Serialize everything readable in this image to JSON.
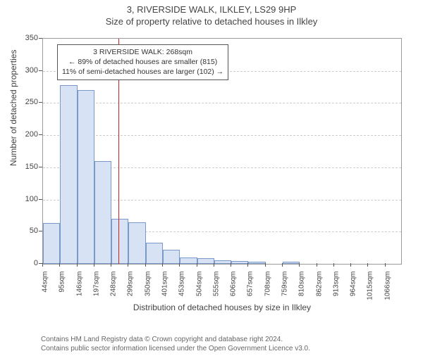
{
  "title": "3, RIVERSIDE WALK, ILKLEY, LS29 9HP",
  "subtitle": "Size of property relative to detached houses in Ilkley",
  "yaxis_title": "Number of detached properties",
  "xaxis_title": "Distribution of detached houses by size in Ilkley",
  "chart": {
    "type": "histogram",
    "ylim": [
      0,
      350
    ],
    "ytick_step": 50,
    "background_color": "#ffffff",
    "grid_color": "#cccccc",
    "axis_color": "#999999",
    "bar_fill": "#d7e3f4",
    "bar_border": "#7a99c8",
    "marker_color": "#d02020",
    "marker_x_value": 268,
    "x_start": 44,
    "x_step": 51,
    "x_unit": "sqm",
    "categories": [
      "44sqm",
      "95sqm",
      "146sqm",
      "197sqm",
      "248sqm",
      "299sqm",
      "350sqm",
      "401sqm",
      "453sqm",
      "504sqm",
      "555sqm",
      "606sqm",
      "657sqm",
      "708sqm",
      "759sqm",
      "810sqm",
      "862sqm",
      "913sqm",
      "964sqm",
      "1015sqm",
      "1066sqm"
    ],
    "values": [
      63,
      278,
      270,
      160,
      70,
      65,
      33,
      22,
      10,
      9,
      6,
      4,
      3,
      0,
      3,
      0,
      0,
      0,
      0,
      0,
      0
    ],
    "bar_width_ratio": 1.0
  },
  "annotation": {
    "line1": "3 RIVERSIDE WALK: 268sqm",
    "line2": "← 89% of detached houses are smaller (815)",
    "line3": "11% of semi-detached houses are larger (102) →",
    "border_color": "#555555"
  },
  "footer": {
    "line1": "Contains HM Land Registry data © Crown copyright and database right 2024.",
    "line2": "Contains public sector information licensed under the Open Government Licence v3.0."
  }
}
